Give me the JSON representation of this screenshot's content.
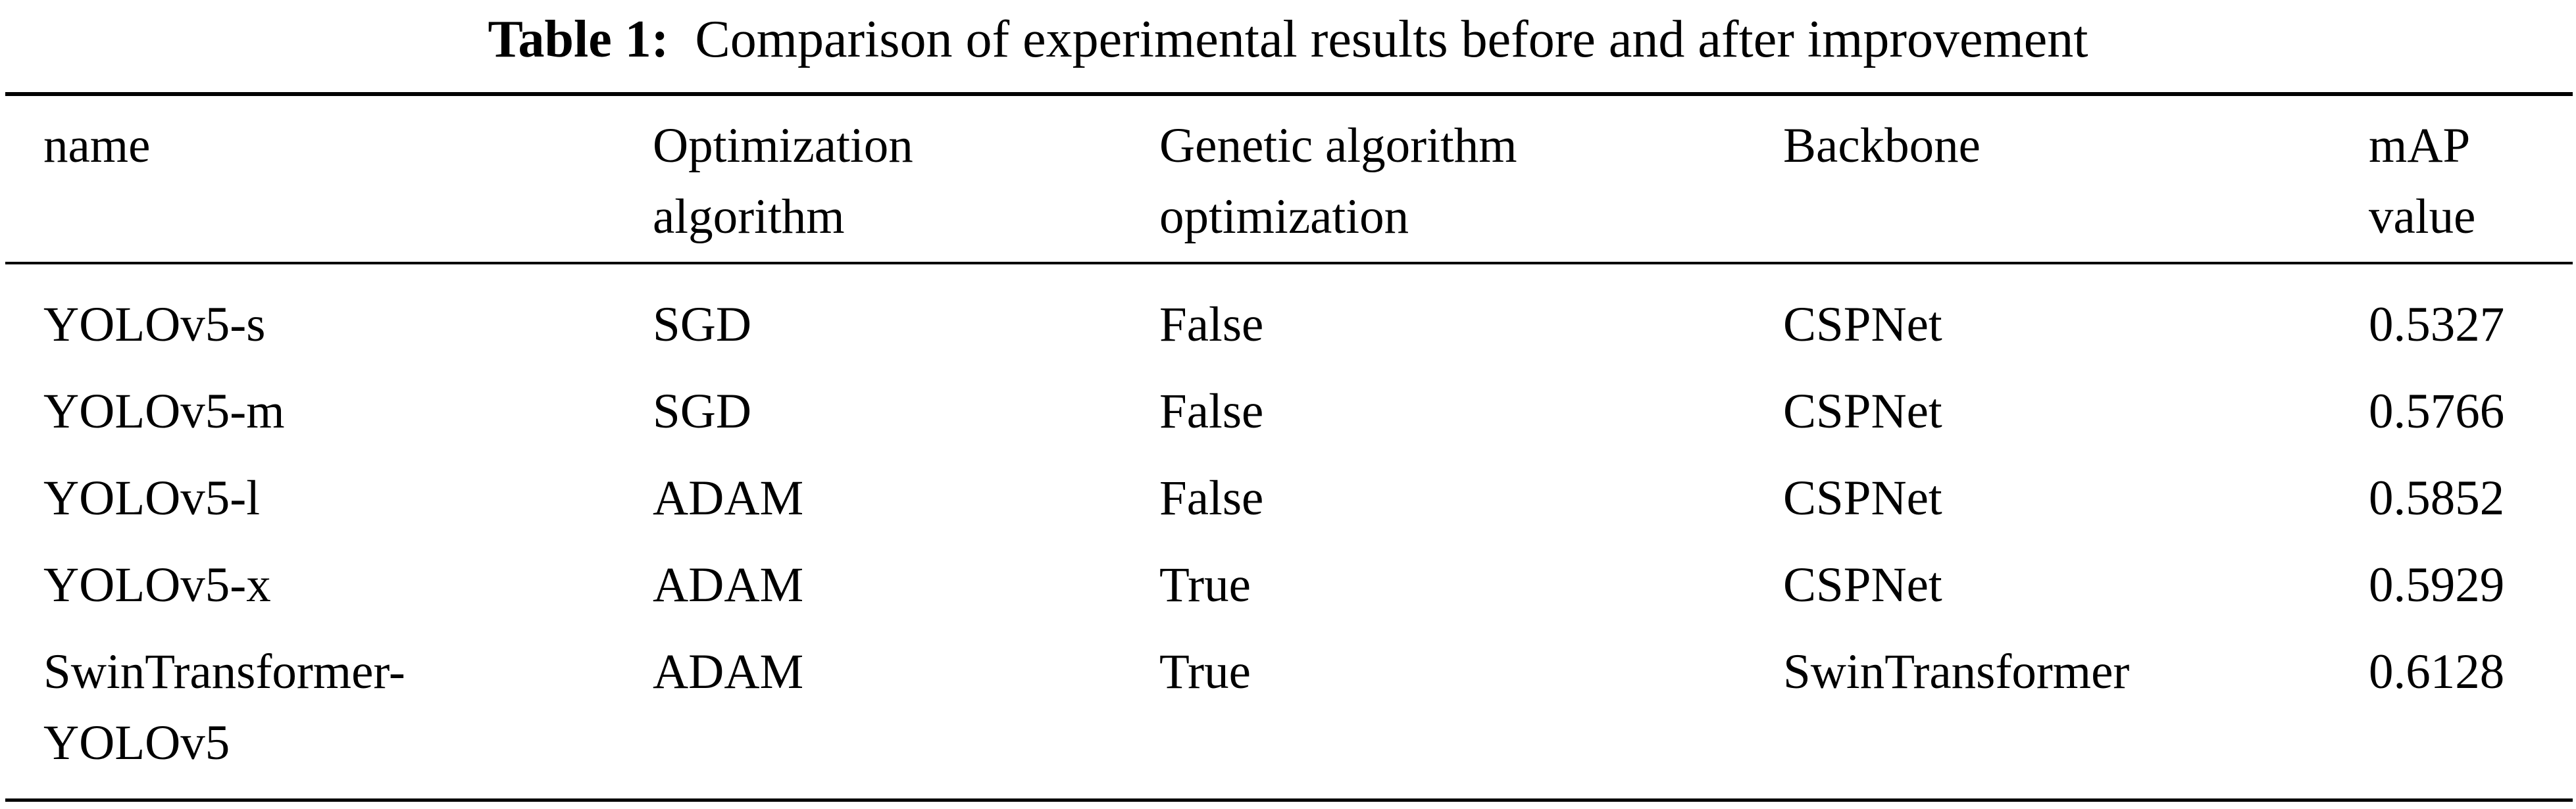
{
  "caption": {
    "label": "Table 1:",
    "text": "Comparison of experimental results before and after improvement"
  },
  "table": {
    "headers": [
      "name",
      "Optimization\nalgorithm",
      "Genetic algorithm\noptimization",
      "Backbone",
      "mAP\nvalue"
    ],
    "rows": [
      [
        "YOLOv5-s",
        "SGD",
        "False",
        "CSPNet",
        "0.5327"
      ],
      [
        "YOLOv5-m",
        "SGD",
        "False",
        "CSPNet",
        "0.5766"
      ],
      [
        "YOLOv5-l",
        "ADAM",
        "False",
        "CSPNet",
        "0.5852"
      ],
      [
        "YOLOv5-x",
        "ADAM",
        "True",
        "CSPNet",
        "0.5929"
      ],
      [
        "SwinTransformer-\nYOLOv5",
        "ADAM",
        "True",
        "SwinTransformer",
        "0.6128"
      ]
    ]
  }
}
